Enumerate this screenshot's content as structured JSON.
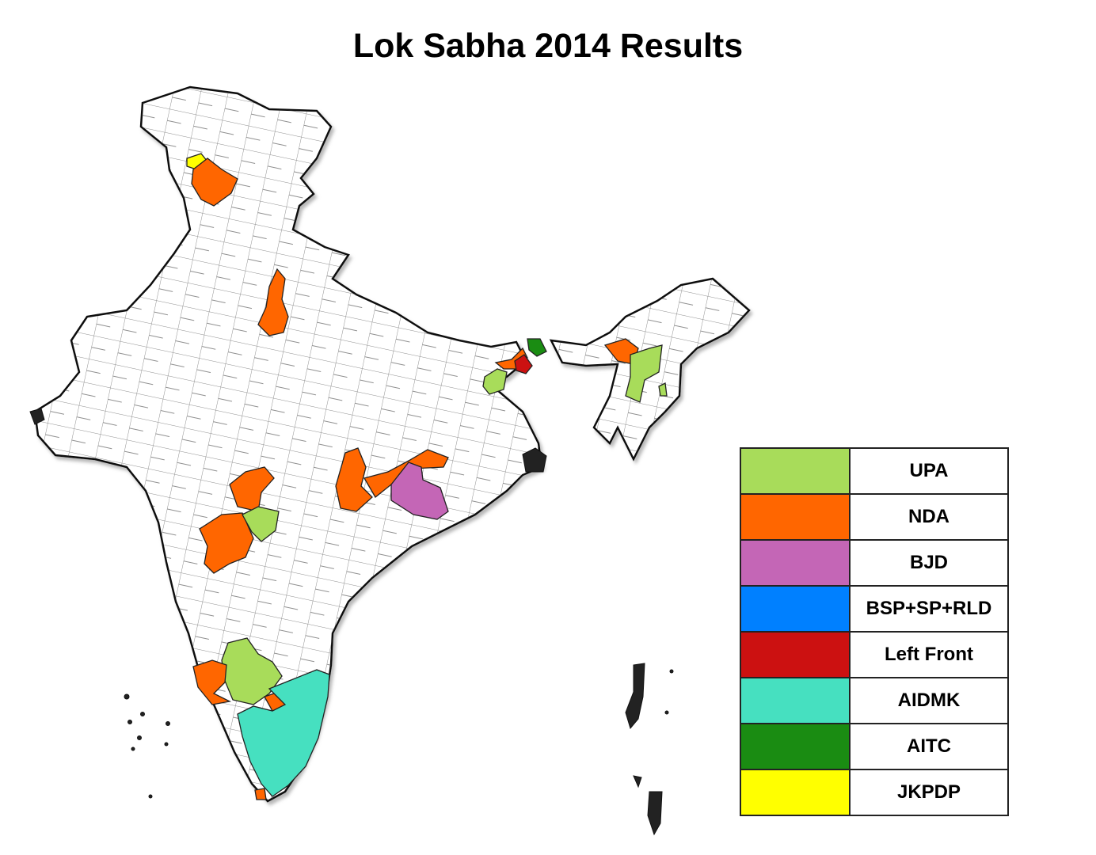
{
  "title": "Lok Sabha 2014 Results",
  "colors": {
    "base": "#ffffff",
    "border": "#111111",
    "UPA": "#a8dc5a",
    "NDA": "#ff6600",
    "BJD": "#c466b6",
    "BSP_SP_RLD": "#0080ff",
    "LeftFront": "#cc1111",
    "AIDMK": "#46e0c0",
    "AITC": "#1a8c12",
    "JKPDP": "#ffff00"
  },
  "legend": [
    {
      "label": "UPA",
      "color": "#a8dc5a"
    },
    {
      "label": "NDA",
      "color": "#ff6600"
    },
    {
      "label": "BJD",
      "color": "#c466b6"
    },
    {
      "label": "BSP+SP+RLD",
      "color": "#0080ff"
    },
    {
      "label": "Left Front",
      "color": "#cc1111"
    },
    {
      "label": "AIDMK",
      "color": "#46e0c0"
    },
    {
      "label": "AITC",
      "color": "#1a8c12"
    },
    {
      "label": "JKPDP",
      "color": "#ffff00"
    }
  ]
}
